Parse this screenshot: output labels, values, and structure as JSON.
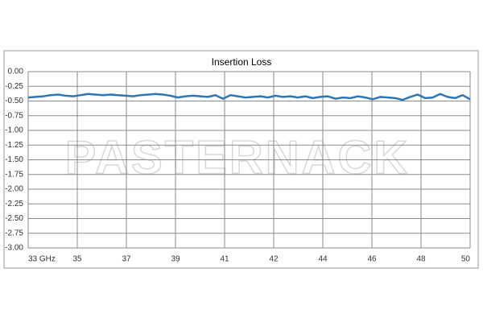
{
  "chart_data": {
    "type": "line",
    "title": "Insertion Loss",
    "watermark": "PASTERNACK",
    "x_tick_labels": [
      "33  GHz",
      "35",
      "37",
      "39",
      "41",
      "42",
      "44",
      "46",
      "48",
      "50"
    ],
    "values": [
      -0.44,
      -0.43,
      -0.42,
      -0.4,
      -0.39,
      -0.41,
      -0.42,
      -0.4,
      -0.38,
      -0.39,
      -0.4,
      -0.39,
      -0.4,
      -0.41,
      -0.42,
      -0.4,
      -0.39,
      -0.38,
      -0.39,
      -0.41,
      -0.44,
      -0.42,
      -0.41,
      -0.42,
      -0.43,
      -0.4,
      -0.46,
      -0.4,
      -0.42,
      -0.44,
      -0.43,
      -0.42,
      -0.44,
      -0.41,
      -0.43,
      -0.42,
      -0.44,
      -0.42,
      -0.45,
      -0.43,
      -0.42,
      -0.46,
      -0.44,
      -0.45,
      -0.42,
      -0.44,
      -0.47,
      -0.43,
      -0.44,
      -0.45,
      -0.48,
      -0.43,
      -0.39,
      -0.45,
      -0.44,
      -0.38,
      -0.43,
      -0.45,
      -0.4,
      -0.47
    ],
    "color": "#2e75b6",
    "ylim": [
      -3,
      0
    ],
    "yticks": [
      {
        "value": 0,
        "label": "0.00"
      },
      {
        "value": -0.25,
        "label": "-0.25"
      },
      {
        "value": -0.5,
        "label": "-0.50"
      },
      {
        "value": -0.75,
        "label": "-0.75"
      },
      {
        "value": -1,
        "label": "-1.00"
      },
      {
        "value": -1.25,
        "label": "-1.25"
      },
      {
        "value": -1.5,
        "label": "-1.50"
      },
      {
        "value": -1.75,
        "label": "-1.75"
      },
      {
        "value": -2,
        "label": "-2.00"
      },
      {
        "value": -2.25,
        "label": "-2.25"
      },
      {
        "value": -2.5,
        "label": "-2.50"
      },
      {
        "value": -2.75,
        "label": "-2.75"
      },
      {
        "value": -3,
        "label": "-3.00"
      }
    ],
    "grid": true
  }
}
